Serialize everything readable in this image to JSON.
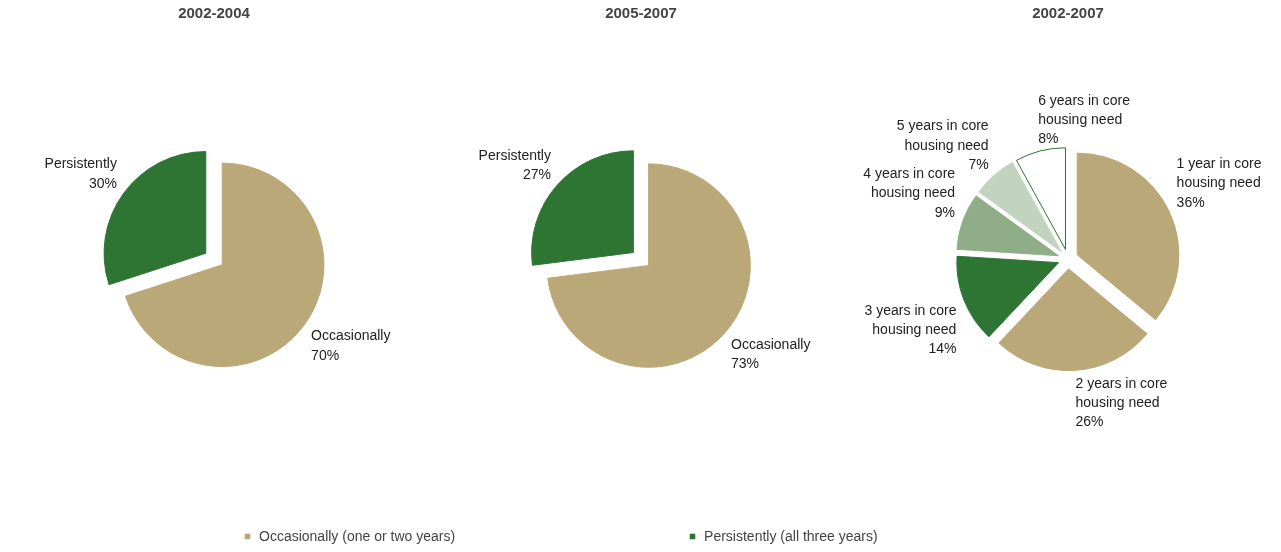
{
  "chart_data": [
    {
      "type": "pie",
      "title": "2002-2004",
      "categories": [
        "Occasionally",
        "Persistently"
      ],
      "values": [
        70,
        30
      ],
      "value_labels": [
        "70%",
        "30%"
      ],
      "colors": [
        "#bba878",
        "#2e7533"
      ]
    },
    {
      "type": "pie",
      "title": "2005-2007",
      "categories": [
        "Occasionally",
        "Persistently"
      ],
      "values": [
        73,
        27
      ],
      "value_labels": [
        "73%",
        "27%"
      ],
      "colors": [
        "#bba878",
        "#2e7533"
      ]
    },
    {
      "type": "pie",
      "title": "2002-2007",
      "categories": [
        "1 year in core housing need",
        "2 years in core housing need",
        "3 years in core housing need",
        "4 years in core housing need",
        "5 years in core housing need",
        "6 years in core housing need"
      ],
      "values": [
        36,
        26,
        14,
        9,
        7,
        8
      ],
      "value_labels": [
        "36%",
        "26%",
        "14%",
        "9%",
        "7%",
        "8%"
      ],
      "colors": [
        "#bba878",
        "#bba878",
        "#2e7533",
        "#8fae88",
        "#c2d3bf",
        "#ffffff"
      ]
    },
    {
      "type": "other",
      "legend": "bottom",
      "series": [
        {
          "name": "Occasionally (one or two years)",
          "color": "#bba878"
        },
        {
          "name": "Persistently (all three years)",
          "color": "#2e7533"
        }
      ]
    }
  ]
}
